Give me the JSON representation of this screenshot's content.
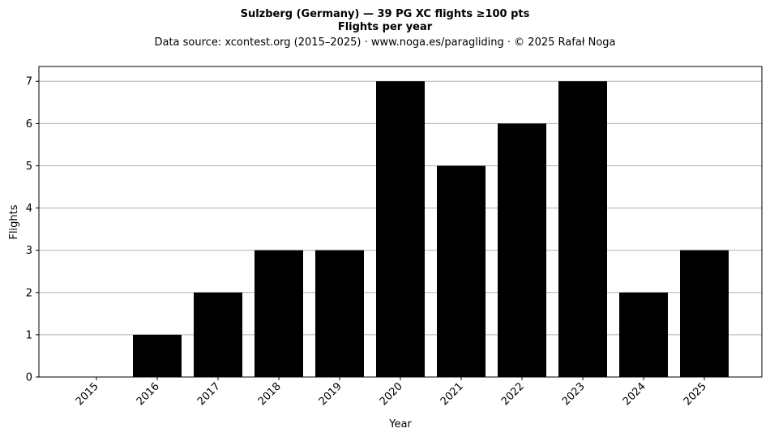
{
  "chart_data": {
    "type": "bar",
    "title": "Sulzberg (Germany)  —  39 PG XC flights ≥100 pts",
    "title2": "Flights per year",
    "subtitle": "Data source: xcontest.org (2015–2025)  ·  www.noga.es/paragliding  ·  © 2025 Rafał Noga",
    "xlabel": "Year",
    "ylabel": "Flights",
    "categories": [
      "2015",
      "2016",
      "2017",
      "2018",
      "2019",
      "2020",
      "2021",
      "2022",
      "2023",
      "2024",
      "2025"
    ],
    "values": [
      0,
      1,
      2,
      3,
      3,
      7,
      5,
      6,
      7,
      2,
      3
    ],
    "ylim": [
      0,
      7.35
    ],
    "yticks": [
      0,
      1,
      2,
      3,
      4,
      5,
      6,
      7
    ],
    "grid": "horizontal",
    "bar_color": "#000000",
    "grid_color": "#b0b0b0"
  }
}
